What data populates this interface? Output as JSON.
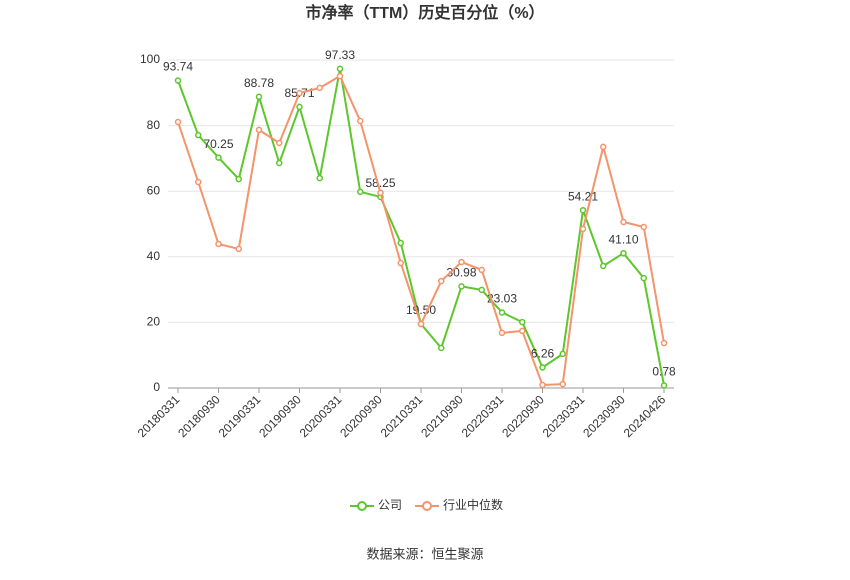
{
  "chart_data": {
    "type": "line",
    "title": "市净率（TTM）历史百分位（%）",
    "source": "数据来源：恒生聚源",
    "categories": [
      "20180331",
      null,
      "20180930",
      null,
      "20190331",
      null,
      "20190930",
      null,
      "20200331",
      null,
      "20200930",
      null,
      "20210331",
      null,
      "20210930",
      null,
      "20220331",
      null,
      "20220930",
      null,
      "20230331",
      null,
      "20230930",
      null,
      "20240426"
    ],
    "series": [
      {
        "name": "公司",
        "color": "#5cc72b",
        "values": [
          93.74,
          77.1,
          70.25,
          63.7,
          88.78,
          68.6,
          85.71,
          64.0,
          97.33,
          59.8,
          58.25,
          44.2,
          19.5,
          12.2,
          30.98,
          29.9,
          23.03,
          20.1,
          6.26,
          10.4,
          54.21,
          37.2,
          41.1,
          33.5,
          0.78
        ],
        "value_labels": [
          "93.74",
          null,
          "70.25",
          null,
          "88.78",
          null,
          "85.71",
          null,
          "97.33",
          null,
          "58.25",
          null,
          "19.50",
          null,
          "30.98",
          null,
          "23.03",
          null,
          "6.26",
          null,
          "54.21",
          null,
          "41.10",
          null,
          "0.78"
        ]
      },
      {
        "name": "行业中位数",
        "color": "#f5936a",
        "values": [
          81.1,
          62.8,
          43.9,
          42.4,
          78.7,
          74.7,
          89.9,
          91.5,
          95.1,
          81.4,
          59.5,
          38.1,
          19.5,
          32.6,
          38.4,
          36.0,
          16.8,
          17.4,
          0.9,
          1.2,
          48.5,
          73.5,
          50.6,
          49.1,
          13.7
        ]
      }
    ],
    "ylim": [
      0,
      100
    ],
    "yticks": [
      0,
      20,
      40,
      60,
      80,
      100
    ],
    "grid": true
  }
}
